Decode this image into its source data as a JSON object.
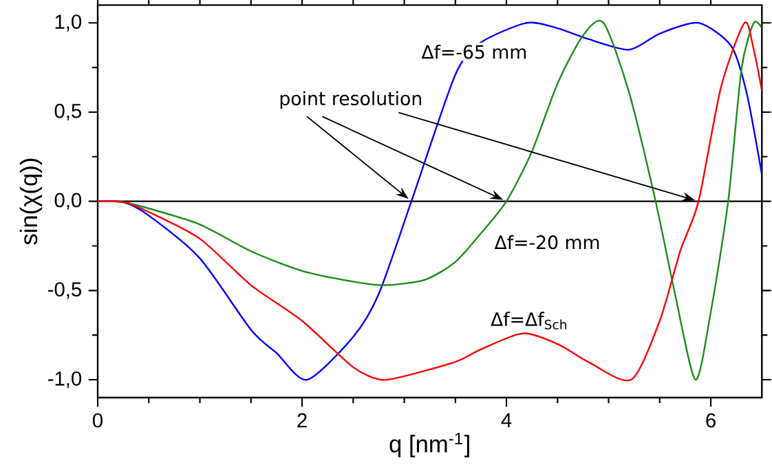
{
  "chart_data": {
    "type": "line",
    "xlabel": "q [nm$^{-1}$]",
    "ylabel": "sin(χ(q))",
    "xlim": [
      0,
      6.5
    ],
    "ylim": [
      -1.1,
      1.1
    ],
    "xticks": [
      0,
      2,
      4,
      6
    ],
    "yticks": [
      {
        "value": -1,
        "label": "-1,0"
      },
      {
        "value": -0.5,
        "label": "-0,5"
      },
      {
        "value": 0,
        "label": "0,0"
      },
      {
        "value": 0.5,
        "label": "0,5"
      },
      {
        "value": 1,
        "label": "1,0"
      }
    ],
    "marker": "none",
    "line_style": "solid",
    "grid": false,
    "series": [
      {
        "color": "#0000ff",
        "x": [
          0,
          0.25,
          0.5,
          1,
          1.5,
          1.75,
          2.05,
          2.5,
          2.75,
          3.07,
          3.5,
          3.75,
          4.2,
          4.5,
          4.8,
          5.2,
          5.5,
          5.88,
          6.2,
          6.35,
          6.5
        ],
        "values": [
          0,
          -0.005,
          -0.08,
          -0.32,
          -0.72,
          -0.85,
          -1,
          -0.76,
          -0.52,
          0,
          0.71,
          0.89,
          1,
          0.97,
          0.91,
          0.85,
          0.94,
          1,
          0.87,
          0.61,
          0.15
        ]
      },
      {
        "color": "#1a8c1a",
        "x": [
          0,
          0.25,
          0.5,
          1,
          1.5,
          2,
          2.5,
          2.81,
          3.2,
          3.5,
          3.75,
          4,
          4.25,
          4.5,
          4.75,
          4.95,
          5.2,
          5.46,
          5.65,
          5.85,
          6,
          6.17,
          6.3,
          6.42,
          6.5
        ],
        "values": [
          0,
          -0.005,
          -0.04,
          -0.13,
          -0.28,
          -0.39,
          -0.45,
          -0.47,
          -0.44,
          -0.34,
          -0.18,
          0,
          0.28,
          0.66,
          0.93,
          1,
          0.61,
          0,
          -0.52,
          -1,
          -0.62,
          0,
          0.74,
          1,
          0.97
        ]
      },
      {
        "color": "#ff0000",
        "x": [
          0,
          0.25,
          0.5,
          1,
          1.5,
          2,
          2.5,
          2.77,
          3,
          3.5,
          3.75,
          4.16,
          4.5,
          4.8,
          5.22,
          5.5,
          5.7,
          5.88,
          6.1,
          6.33,
          6.42,
          6.5
        ],
        "values": [
          0,
          -0.005,
          -0.06,
          -0.21,
          -0.47,
          -0.67,
          -0.93,
          -1,
          -0.98,
          -0.9,
          -0.83,
          -0.74,
          -0.8,
          -0.9,
          -1,
          -0.67,
          -0.28,
          0,
          0.64,
          1,
          0.85,
          0.62
        ]
      }
    ],
    "ref_lines": [
      {
        "axis": "y",
        "value": 0,
        "color": "#000000"
      }
    ],
    "annotations": [
      "Δf=-65 mm",
      "Δf=-20 mm",
      "Δf=Δf$_{Sch}$",
      {
        "text": "point resolution",
        "x": 3.07,
        "y": 0
      }
    ]
  }
}
